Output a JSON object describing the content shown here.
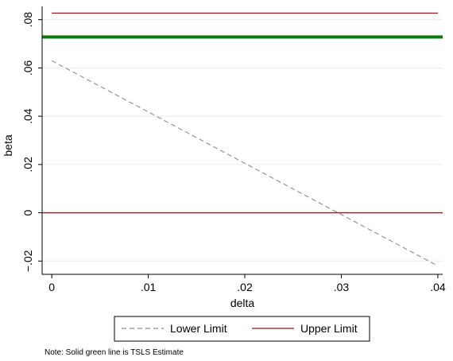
{
  "chart_data": {
    "type": "line",
    "xlabel": "delta",
    "ylabel": "beta",
    "xlim": [
      -0.001,
      0.0405
    ],
    "ylim": [
      -0.0255,
      0.0855
    ],
    "x_ticks": [
      {
        "value": 0,
        "label": "0"
      },
      {
        "value": 0.01,
        "label": ".01"
      },
      {
        "value": 0.02,
        "label": ".02"
      },
      {
        "value": 0.03,
        "label": ".03"
      },
      {
        "value": 0.04,
        "label": ".04"
      }
    ],
    "y_ticks": [
      {
        "value": -0.02,
        "label": "−.02"
      },
      {
        "value": 0,
        "label": "0"
      },
      {
        "value": 0.02,
        "label": ".02"
      },
      {
        "value": 0.04,
        "label": ".04"
      },
      {
        "value": 0.06,
        "label": ".06"
      },
      {
        "value": 0.08,
        "label": ".08"
      }
    ],
    "grid": true,
    "series": [
      {
        "name": "Lower Limit",
        "style": "dashed",
        "color": "#8c8c8c",
        "x": [
          0,
          0.04
        ],
        "y": [
          0.063,
          -0.022
        ]
      },
      {
        "name": "Upper Limit",
        "style": "solid",
        "color": "#8b1a1a",
        "x": [
          0,
          0.04
        ],
        "y": [
          0.0827,
          0.0827
        ]
      },
      {
        "style": "solid",
        "color": "#0b7a0b",
        "x": [
          -0.001,
          0.0405
        ],
        "y": [
          0.0728,
          0.0728
        ]
      },
      {
        "style": "solid",
        "color": "#d00000",
        "x": [
          -0.001,
          0.0405
        ],
        "y": [
          0,
          0
        ]
      }
    ],
    "legend": {
      "position": "bottom-center",
      "entries": [
        "Lower Limit",
        "Upper Limit"
      ]
    },
    "note": "Note: Solid green line is TSLS Estimate"
  }
}
